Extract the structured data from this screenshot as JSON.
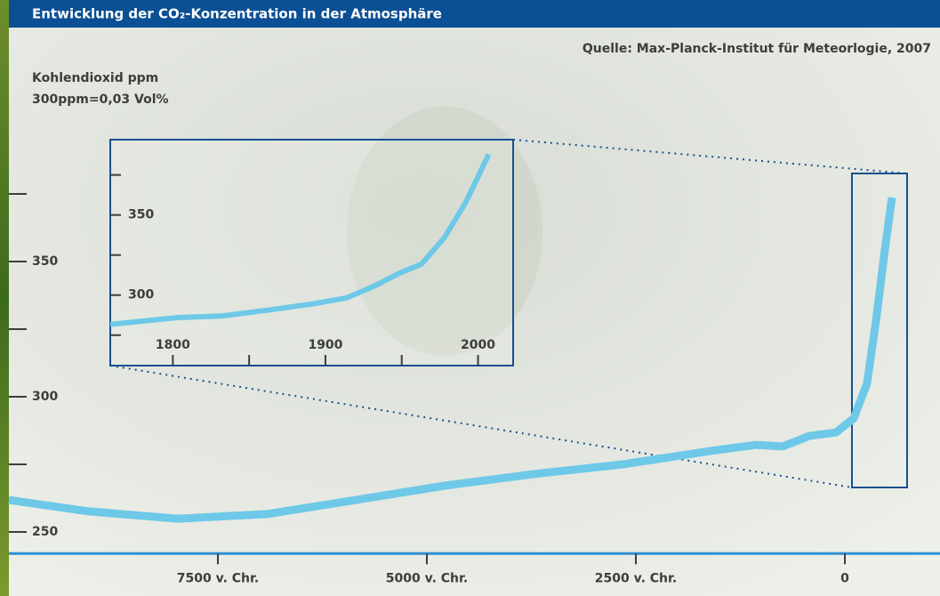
{
  "chart_data": [
    {
      "type": "line",
      "title": "Entwicklung der CO₂-Konzentration in der Atmosphäre",
      "source": "Quelle: Max-Planck-Institut für Meteorlogie, 2007",
      "y_label": [
        "Kohlendioxid ppm",
        "300ppm=0,03 Vol%"
      ],
      "x": [
        -10000,
        -9043,
        -7979,
        -6915,
        -5851,
        -4787,
        -3723,
        -2660,
        -1596,
        -1064,
        -745,
        -426,
        -106,
        106,
        266,
        372,
        479,
        564
      ],
      "values": [
        261.8,
        257.6,
        254.9,
        256.6,
        261.8,
        267.1,
        271.4,
        275,
        280,
        282.2,
        281.6,
        285.5,
        286.8,
        292,
        305,
        328,
        354.6,
        373.7
      ],
      "color": "#6ec8e8",
      "xlim": [
        -10000,
        1138
      ],
      "ylim": [
        242,
        388
      ],
      "xticks": [
        {
          "value": -7500,
          "label": "7500 v. Chr."
        },
        {
          "value": -5000,
          "label": "5000 v. Chr."
        },
        {
          "value": -2500,
          "label": "2500 v. Chr."
        },
        0
      ],
      "yticks": [
        250,
        300,
        350
      ],
      "yminor_ticks": [
        275,
        325,
        375
      ]
    },
    {
      "type": "line",
      "x": [
        1759,
        1803,
        1832,
        1862,
        1891,
        1914,
        1932,
        1949,
        1963,
        1978,
        1992,
        2007
      ],
      "values": [
        281.7,
        286,
        287,
        290.6,
        294.4,
        298.3,
        305.6,
        313.9,
        319.4,
        336,
        358,
        387.8
      ],
      "color": "#6ec8e8",
      "xlim": [
        1759,
        2023
      ],
      "ylim": [
        256,
        397
      ],
      "xticks": [
        1800,
        1900,
        2000
      ],
      "xminor_ticks": [
        1850,
        1950
      ],
      "yticks": [
        300,
        350
      ],
      "yminor_ticks": [
        275,
        325,
        375
      ]
    }
  ]
}
